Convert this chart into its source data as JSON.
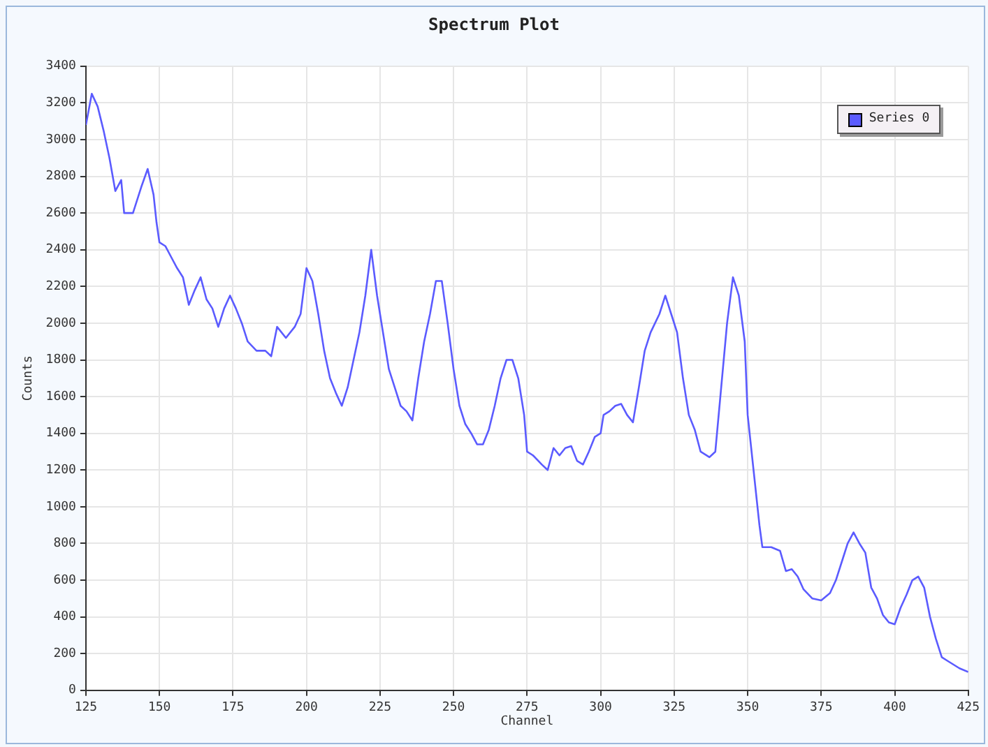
{
  "chart_data": {
    "type": "line",
    "title": "Spectrum Plot",
    "xlabel": "Channel",
    "ylabel": "Counts",
    "xlim": [
      125,
      425
    ],
    "xticks": [
      125,
      150,
      175,
      200,
      225,
      250,
      275,
      300,
      325,
      350,
      375,
      400,
      425
    ],
    "ylim": [
      0,
      3400
    ],
    "yticks": [
      0,
      200,
      400,
      600,
      800,
      1000,
      1200,
      1400,
      1600,
      1800,
      2000,
      2200,
      2400,
      2600,
      2800,
      3000,
      3200,
      3400
    ],
    "grid": true,
    "legend": "top right",
    "marker": "none",
    "line_style": "solid",
    "series": [
      {
        "name": "Series 0",
        "color": "#5b5bff",
        "x": [
          125,
          127,
          129,
          131,
          133,
          135,
          137,
          138,
          141,
          144,
          146,
          148,
          149,
          150,
          152,
          154,
          156,
          158,
          160,
          162,
          164,
          166,
          168,
          170,
          172,
          174,
          176,
          178,
          180,
          183,
          186,
          188,
          190,
          193,
          196,
          198,
          200,
          202,
          204,
          206,
          208,
          210,
          212,
          214,
          216,
          218,
          220,
          222,
          224,
          226,
          228,
          230,
          232,
          234,
          236,
          238,
          240,
          242,
          244,
          246,
          248,
          250,
          252,
          254,
          256,
          258,
          260,
          262,
          264,
          266,
          268,
          270,
          272,
          274,
          275,
          277,
          280,
          282,
          284,
          286,
          288,
          290,
          292,
          294,
          296,
          298,
          300,
          301,
          303,
          305,
          307,
          309,
          311,
          313,
          315,
          317,
          320,
          322,
          324,
          326,
          328,
          330,
          332,
          334,
          337,
          339,
          341,
          343,
          345,
          347,
          349,
          350,
          352,
          354,
          355,
          358,
          361,
          363,
          365,
          367,
          369,
          372,
          375,
          378,
          380,
          382,
          384,
          386,
          388,
          390,
          392,
          394,
          396,
          398,
          400,
          402,
          404,
          406,
          408,
          410,
          412,
          414,
          416,
          418,
          420,
          422,
          425
        ],
        "values": [
          3080,
          3250,
          3180,
          3050,
          2900,
          2720,
          2780,
          2600,
          2600,
          2750,
          2840,
          2700,
          2550,
          2440,
          2420,
          2360,
          2300,
          2250,
          2100,
          2180,
          2250,
          2130,
          2080,
          1980,
          2080,
          2150,
          2080,
          2000,
          1900,
          1850,
          1850,
          1820,
          1980,
          1920,
          1980,
          2050,
          2300,
          2230,
          2050,
          1850,
          1700,
          1620,
          1550,
          1650,
          1800,
          1950,
          2150,
          2400,
          2150,
          1950,
          1750,
          1650,
          1550,
          1520,
          1470,
          1700,
          1900,
          2050,
          2230,
          2230,
          2000,
          1750,
          1550,
          1450,
          1400,
          1340,
          1340,
          1420,
          1550,
          1700,
          1800,
          1800,
          1700,
          1500,
          1300,
          1280,
          1230,
          1200,
          1320,
          1280,
          1320,
          1330,
          1250,
          1230,
          1300,
          1380,
          1400,
          1500,
          1520,
          1550,
          1560,
          1500,
          1460,
          1650,
          1850,
          1950,
          2050,
          2150,
          2050,
          1950,
          1700,
          1500,
          1420,
          1300,
          1270,
          1300,
          1650,
          2000,
          2250,
          2150,
          1900,
          1500,
          1200,
          900,
          780,
          780,
          760,
          650,
          660,
          620,
          550,
          500,
          490,
          530,
          600,
          700,
          800,
          860,
          800,
          750,
          560,
          500,
          410,
          370,
          360,
          450,
          520,
          600,
          620,
          560,
          400,
          280,
          180,
          160,
          140,
          120,
          100
        ]
      }
    ]
  }
}
